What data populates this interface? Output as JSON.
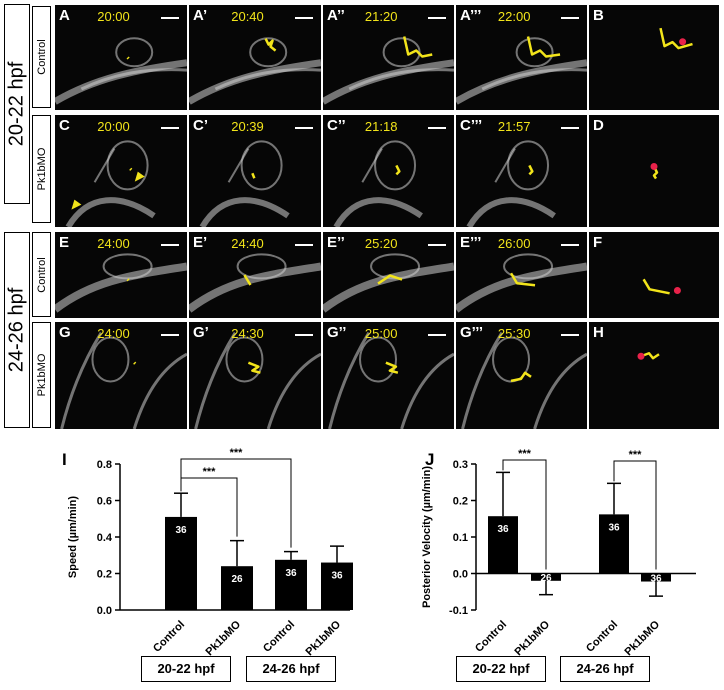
{
  "side_labels": {
    "top": "20-22 hpf",
    "bottom": "24-26 hpf"
  },
  "condition_labels": {
    "row1": "Control",
    "row2": "Pk1bMO",
    "row3": "Control",
    "row4": "Pk1bMO"
  },
  "rows": [
    {
      "panels": [
        {
          "label": "A",
          "time": "20:00"
        },
        {
          "label": "A’",
          "time": "20:40"
        },
        {
          "label": "A’’",
          "time": "21:20"
        },
        {
          "label": "A’’’",
          "time": "22:00"
        },
        {
          "label": "B",
          "time": ""
        }
      ]
    },
    {
      "panels": [
        {
          "label": "C",
          "time": "20:00"
        },
        {
          "label": "C’",
          "time": "20:39"
        },
        {
          "label": "C’’",
          "time": "21:18"
        },
        {
          "label": "C’’’",
          "time": "21:57"
        },
        {
          "label": "D",
          "time": ""
        }
      ]
    },
    {
      "panels": [
        {
          "label": "E",
          "time": "24:00"
        },
        {
          "label": "E’",
          "time": "24:40"
        },
        {
          "label": "E’’",
          "time": "25:20"
        },
        {
          "label": "E’’’",
          "time": "26:00"
        },
        {
          "label": "F",
          "time": ""
        }
      ]
    },
    {
      "panels": [
        {
          "label": "G",
          "time": "24:00"
        },
        {
          "label": "G’",
          "time": "24:30"
        },
        {
          "label": "G’’",
          "time": "25:00"
        },
        {
          "label": "G’’’",
          "time": "25:30"
        },
        {
          "label": "H",
          "time": ""
        }
      ]
    }
  ],
  "colors": {
    "track": "#f2e41a",
    "endpoint": "#e8224a",
    "bar": "#000000"
  },
  "chart_data": [
    {
      "type": "bar",
      "panel_label": "I",
      "ylabel": "Speed (µm/min)",
      "ylim": [
        0,
        0.8
      ],
      "yticks": [
        "0.0",
        "0.2",
        "0.4",
        "0.6",
        "0.8"
      ],
      "categories": [
        "Control",
        "Pk1bMO",
        "Control",
        "Pk1bMO"
      ],
      "values": [
        0.51,
        0.24,
        0.275,
        0.26
      ],
      "errors": [
        0.13,
        0.14,
        0.045,
        0.09
      ],
      "n_labels": [
        "36",
        "26",
        "36",
        "36"
      ],
      "groups": [
        "20-22 hpf",
        "24-26 hpf"
      ],
      "significance": [
        {
          "pair": [
            0,
            1
          ],
          "label": "***"
        },
        {
          "pair": [
            0,
            2
          ],
          "label": "***"
        }
      ]
    },
    {
      "type": "bar",
      "panel_label": "J",
      "ylabel": "Posterior Velocity (µm/min)",
      "ylim": [
        -0.1,
        0.3
      ],
      "yticks": [
        "-0.1",
        "0.0",
        "0.1",
        "0.2",
        "0.3"
      ],
      "categories": [
        "Control",
        "Pk1bMO",
        "Control",
        "Pk1bMO"
      ],
      "values": [
        0.157,
        -0.02,
        0.162,
        -0.022
      ],
      "errors": [
        0.12,
        0.038,
        0.085,
        0.04
      ],
      "n_labels": [
        "36",
        "26",
        "36",
        "36"
      ],
      "groups": [
        "20-22 hpf",
        "24-26 hpf"
      ],
      "significance": [
        {
          "pair": [
            0,
            1
          ],
          "label": "***"
        },
        {
          "pair": [
            2,
            3
          ],
          "label": "***"
        }
      ]
    }
  ]
}
